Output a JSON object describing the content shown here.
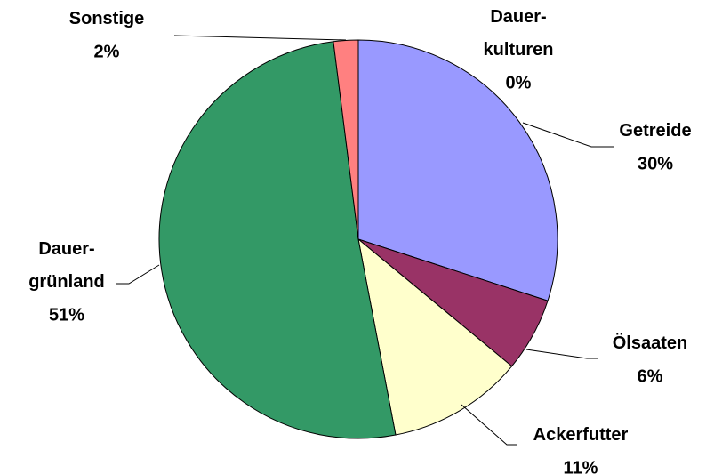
{
  "chart_data": {
    "type": "pie",
    "categories": [
      "Dauer-\nkulturen",
      "Getreide",
      "Ölsaaten",
      "Ackerfutter",
      "Dauer-\ngrünland",
      "Sonstige"
    ],
    "values": [
      0,
      30,
      6,
      11,
      51,
      2
    ],
    "value_labels": [
      "0%",
      "30%",
      "6%",
      "11%",
      "51%",
      "2%"
    ],
    "colors": [
      "#ccffff",
      "#9999ff",
      "#993366",
      "#ffffcc",
      "#339966",
      "#ff8080"
    ]
  }
}
